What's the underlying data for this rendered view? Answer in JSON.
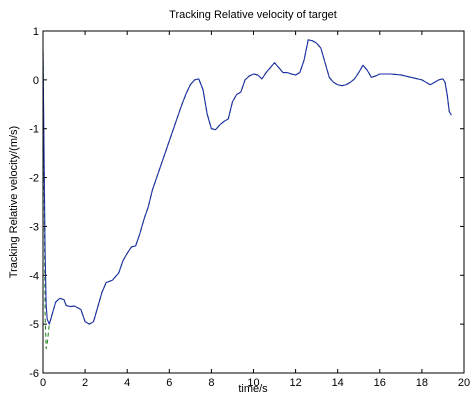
{
  "chart_data": {
    "type": "line",
    "title": "Tracking Relative velocity of target",
    "xlabel": "time/s",
    "ylabel": "Tracking Relative velocity/(m/s)",
    "xlim": [
      0,
      20
    ],
    "ylim": [
      -6,
      1
    ],
    "xticks": [
      "0",
      "2",
      "4",
      "6",
      "8",
      "10",
      "12",
      "14",
      "16",
      "18",
      "20"
    ],
    "yticks": [
      "-6",
      "-5",
      "-4",
      "-3",
      "-2",
      "-1",
      "0",
      "1"
    ],
    "grid": false,
    "legend": "none",
    "series": [
      {
        "color": "#1f2fa8",
        "style": "solid",
        "points": [
          [
            0,
            0.6
          ],
          [
            0.05,
            -1.5
          ],
          [
            0.1,
            -3.5
          ],
          [
            0.15,
            -4.6
          ],
          [
            0.2,
            -4.9
          ],
          [
            0.3,
            -5.0
          ],
          [
            0.4,
            -4.85
          ],
          [
            0.5,
            -4.7
          ],
          [
            0.6,
            -4.55
          ],
          [
            0.8,
            -4.47
          ],
          [
            1.0,
            -4.5
          ],
          [
            1.1,
            -4.62
          ],
          [
            1.3,
            -4.64
          ],
          [
            1.5,
            -4.63
          ],
          [
            1.8,
            -4.7
          ],
          [
            2.0,
            -4.95
          ],
          [
            2.2,
            -5.0
          ],
          [
            2.4,
            -4.95
          ],
          [
            2.6,
            -4.65
          ],
          [
            2.8,
            -4.35
          ],
          [
            3.0,
            -4.15
          ],
          [
            3.3,
            -4.1
          ],
          [
            3.6,
            -3.95
          ],
          [
            3.8,
            -3.7
          ],
          [
            4.0,
            -3.55
          ],
          [
            4.2,
            -3.42
          ],
          [
            4.4,
            -3.4
          ],
          [
            4.6,
            -3.15
          ],
          [
            4.8,
            -2.85
          ],
          [
            5.0,
            -2.6
          ],
          [
            5.2,
            -2.25
          ],
          [
            5.4,
            -2.0
          ],
          [
            5.6,
            -1.75
          ],
          [
            5.8,
            -1.5
          ],
          [
            6.0,
            -1.25
          ],
          [
            6.2,
            -1.0
          ],
          [
            6.4,
            -0.75
          ],
          [
            6.6,
            -0.5
          ],
          [
            6.8,
            -0.28
          ],
          [
            7.0,
            -0.1
          ],
          [
            7.2,
            0.0
          ],
          [
            7.4,
            0.02
          ],
          [
            7.6,
            -0.2
          ],
          [
            7.8,
            -0.7
          ],
          [
            8.0,
            -1.0
          ],
          [
            8.2,
            -1.02
          ],
          [
            8.4,
            -0.92
          ],
          [
            8.6,
            -0.85
          ],
          [
            8.8,
            -0.8
          ],
          [
            9.0,
            -0.45
          ],
          [
            9.2,
            -0.3
          ],
          [
            9.4,
            -0.25
          ],
          [
            9.6,
            0.0
          ],
          [
            9.8,
            0.08
          ],
          [
            10.0,
            0.12
          ],
          [
            10.2,
            0.1
          ],
          [
            10.4,
            0.02
          ],
          [
            10.6,
            0.15
          ],
          [
            10.8,
            0.25
          ],
          [
            11.0,
            0.35
          ],
          [
            11.2,
            0.25
          ],
          [
            11.4,
            0.15
          ],
          [
            11.6,
            0.15
          ],
          [
            11.8,
            0.12
          ],
          [
            12.0,
            0.1
          ],
          [
            12.2,
            0.15
          ],
          [
            12.4,
            0.4
          ],
          [
            12.6,
            0.82
          ],
          [
            12.8,
            0.8
          ],
          [
            13.0,
            0.75
          ],
          [
            13.2,
            0.65
          ],
          [
            13.4,
            0.35
          ],
          [
            13.6,
            0.05
          ],
          [
            13.8,
            -0.05
          ],
          [
            14.0,
            -0.1
          ],
          [
            14.2,
            -0.12
          ],
          [
            14.4,
            -0.1
          ],
          [
            14.6,
            -0.05
          ],
          [
            14.8,
            0.02
          ],
          [
            15.0,
            0.15
          ],
          [
            15.2,
            0.3
          ],
          [
            15.4,
            0.2
          ],
          [
            15.6,
            0.05
          ],
          [
            15.8,
            0.08
          ],
          [
            16.0,
            0.12
          ],
          [
            16.5,
            0.12
          ],
          [
            17.0,
            0.1
          ],
          [
            17.5,
            0.05
          ],
          [
            18.0,
            0.0
          ],
          [
            18.2,
            -0.05
          ],
          [
            18.4,
            -0.1
          ],
          [
            18.6,
            -0.05
          ],
          [
            18.8,
            0.0
          ],
          [
            19.0,
            0.02
          ],
          [
            19.1,
            -0.05
          ],
          [
            19.2,
            -0.3
          ],
          [
            19.3,
            -0.65
          ],
          [
            19.4,
            -0.72
          ]
        ]
      },
      {
        "color": "#2e8b2e",
        "style": "dashed",
        "points": [
          [
            0,
            0.7
          ],
          [
            0.05,
            -2.0
          ],
          [
            0.1,
            -4.8
          ],
          [
            0.15,
            -5.5
          ],
          [
            0.2,
            -5.4
          ],
          [
            0.3,
            -5.0
          ],
          [
            0.4,
            -4.85
          ],
          [
            0.5,
            -4.7
          ],
          [
            0.6,
            -4.55
          ],
          [
            0.8,
            -4.47
          ],
          [
            1.0,
            -4.5
          ],
          [
            1.1,
            -4.62
          ],
          [
            1.3,
            -4.64
          ],
          [
            1.5,
            -4.63
          ],
          [
            1.8,
            -4.7
          ],
          [
            2.0,
            -4.95
          ],
          [
            2.2,
            -5.0
          ],
          [
            2.4,
            -4.95
          ],
          [
            2.6,
            -4.65
          ],
          [
            2.8,
            -4.35
          ],
          [
            3.0,
            -4.15
          ],
          [
            3.3,
            -4.1
          ],
          [
            3.6,
            -3.95
          ],
          [
            3.8,
            -3.7
          ],
          [
            4.0,
            -3.55
          ],
          [
            4.2,
            -3.42
          ],
          [
            4.4,
            -3.4
          ],
          [
            4.6,
            -3.15
          ],
          [
            4.8,
            -2.85
          ],
          [
            5.0,
            -2.6
          ],
          [
            5.2,
            -2.25
          ],
          [
            5.4,
            -2.0
          ],
          [
            5.6,
            -1.75
          ],
          [
            5.8,
            -1.5
          ],
          [
            6.0,
            -1.25
          ],
          [
            6.2,
            -1.0
          ],
          [
            6.4,
            -0.75
          ],
          [
            6.6,
            -0.5
          ],
          [
            6.8,
            -0.28
          ],
          [
            7.0,
            -0.1
          ],
          [
            7.2,
            0.0
          ],
          [
            7.4,
            0.02
          ],
          [
            7.6,
            -0.2
          ],
          [
            7.8,
            -0.7
          ],
          [
            8.0,
            -1.0
          ],
          [
            8.2,
            -1.02
          ],
          [
            8.4,
            -0.92
          ],
          [
            8.6,
            -0.85
          ],
          [
            8.8,
            -0.8
          ],
          [
            9.0,
            -0.45
          ],
          [
            9.2,
            -0.3
          ],
          [
            9.4,
            -0.25
          ],
          [
            9.6,
            0.0
          ],
          [
            9.8,
            0.08
          ],
          [
            10.0,
            0.12
          ],
          [
            10.2,
            0.1
          ],
          [
            10.4,
            0.02
          ],
          [
            10.6,
            0.15
          ],
          [
            10.8,
            0.25
          ],
          [
            11.0,
            0.35
          ],
          [
            11.2,
            0.25
          ],
          [
            11.4,
            0.15
          ],
          [
            11.6,
            0.15
          ],
          [
            11.8,
            0.12
          ],
          [
            12.0,
            0.1
          ],
          [
            12.2,
            0.15
          ],
          [
            12.4,
            0.4
          ],
          [
            12.6,
            0.82
          ],
          [
            12.8,
            0.8
          ],
          [
            13.0,
            0.75
          ],
          [
            13.2,
            0.65
          ],
          [
            13.4,
            0.35
          ],
          [
            13.6,
            0.05
          ],
          [
            13.8,
            -0.05
          ],
          [
            14.0,
            -0.1
          ],
          [
            14.2,
            -0.12
          ],
          [
            14.4,
            -0.1
          ],
          [
            14.6,
            -0.05
          ],
          [
            14.8,
            0.02
          ],
          [
            15.0,
            0.15
          ],
          [
            15.2,
            0.3
          ],
          [
            15.4,
            0.2
          ],
          [
            15.6,
            0.05
          ],
          [
            15.8,
            0.08
          ],
          [
            16.0,
            0.12
          ],
          [
            16.5,
            0.12
          ],
          [
            17.0,
            0.1
          ],
          [
            17.5,
            0.05
          ],
          [
            18.0,
            0.0
          ],
          [
            18.2,
            -0.05
          ],
          [
            18.4,
            -0.1
          ],
          [
            18.6,
            -0.05
          ],
          [
            18.8,
            0.0
          ],
          [
            19.0,
            0.02
          ],
          [
            19.1,
            -0.05
          ],
          [
            19.2,
            -0.3
          ],
          [
            19.3,
            -0.65
          ],
          [
            19.4,
            -0.72
          ]
        ]
      }
    ]
  }
}
